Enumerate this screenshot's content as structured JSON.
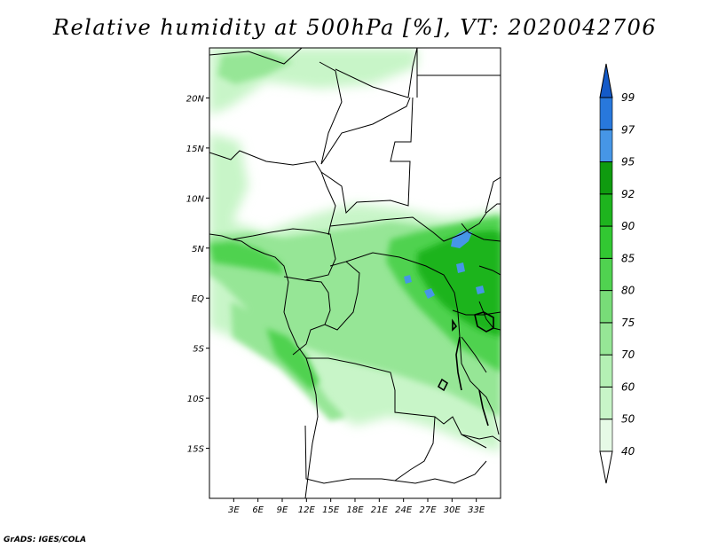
{
  "title": "Relative humidity at 500hPa [%], VT: 2020042706",
  "credit": "GrADS: IGES/COLA",
  "map": {
    "lon_range": [
      0,
      36
    ],
    "lat_range": [
      -20,
      25
    ],
    "lat_ticks": [
      {
        "value": 20,
        "label": "20N"
      },
      {
        "value": 15,
        "label": "15N"
      },
      {
        "value": 10,
        "label": "10N"
      },
      {
        "value": 5,
        "label": "5N"
      },
      {
        "value": 0,
        "label": "EQ"
      },
      {
        "value": -5,
        "label": "5S"
      },
      {
        "value": -10,
        "label": "10S"
      },
      {
        "value": -15,
        "label": "15S"
      }
    ],
    "lon_ticks": [
      {
        "value": 3,
        "label": "3E"
      },
      {
        "value": 6,
        "label": "6E"
      },
      {
        "value": 9,
        "label": "9E"
      },
      {
        "value": 12,
        "label": "12E"
      },
      {
        "value": 15,
        "label": "15E"
      },
      {
        "value": 18,
        "label": "18E"
      },
      {
        "value": 21,
        "label": "21E"
      },
      {
        "value": 24,
        "label": "24E"
      },
      {
        "value": 27,
        "label": "27E"
      },
      {
        "value": 30,
        "label": "30E"
      },
      {
        "value": 33,
        "label": "33E"
      }
    ]
  },
  "colorbar": {
    "levels": [
      {
        "label": "40",
        "color": "#e6fae6"
      },
      {
        "label": "50",
        "color": "#c8f5c8"
      },
      {
        "label": "60",
        "color": "#b4f0b4"
      },
      {
        "label": "70",
        "color": "#96e696"
      },
      {
        "label": "75",
        "color": "#78dc78"
      },
      {
        "label": "80",
        "color": "#50d250"
      },
      {
        "label": "85",
        "color": "#32c832"
      },
      {
        "label": "90",
        "color": "#1eb41e"
      },
      {
        "label": "92",
        "color": "#0f9b0f"
      },
      {
        "label": "95",
        "color": "#4696e6"
      },
      {
        "label": "97",
        "color": "#2878dc"
      },
      {
        "label": "99",
        "color": "#145ac8"
      }
    ],
    "below_color": "#ffffff"
  },
  "colors": {
    "land": "#ffffff",
    "border": "#000000",
    "lake": "#000000"
  }
}
